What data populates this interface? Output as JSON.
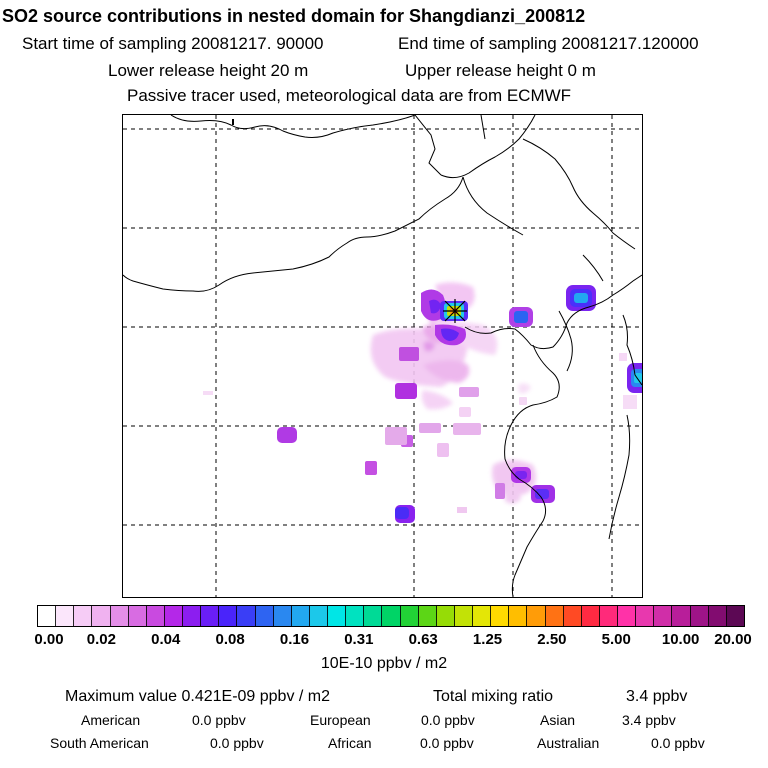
{
  "header": {
    "title": "SO2 source contributions in nested domain for Shangdianzi_200812",
    "start_label": "Start time of sampling 20081217. 90000",
    "end_label": "End time of sampling 20081217.120000",
    "lower_label": "Lower release height   20 m",
    "upper_label": "Upper release height    0 m",
    "tracer_note": "Passive tracer used, meteorological data are from ECMWF"
  },
  "colorbar": {
    "colors": [
      "#ffffff",
      "#fbe6fb",
      "#f6ccf6",
      "#f0b2f0",
      "#e48ee8",
      "#d86ce2",
      "#c94ae0",
      "#b428e8",
      "#8c1ef0",
      "#6a1ef6",
      "#4a24fa",
      "#3a3ef6",
      "#2e64f2",
      "#2a88f0",
      "#22a8f0",
      "#1cc8ea",
      "#00e6e6",
      "#00e2c0",
      "#00da96",
      "#00d466",
      "#22d236",
      "#5cd616",
      "#96dc06",
      "#c2e206",
      "#e4e606",
      "#ffda00",
      "#ffbe00",
      "#ff9c08",
      "#ff7214",
      "#ff4a24",
      "#ff2a42",
      "#ff2a7a",
      "#ff32a8",
      "#e838ae",
      "#d02ea8",
      "#b81e9a",
      "#9e1488",
      "#820c70",
      "#5c0854"
    ],
    "ticks": [
      "0.00",
      "0.02",
      "0.04",
      "0.08",
      "0.16",
      "0.31",
      "0.63",
      "1.25",
      "2.50",
      "5.00",
      "10.00",
      "20.00"
    ],
    "units": "10E-10 ppbv / m2"
  },
  "summary": {
    "max_label": "Maximum value  0.421E-09 ppbv / m2",
    "total_label": "Total mixing ratio",
    "total_value": "3.4 ppbv",
    "regions": [
      {
        "name": "American",
        "value": "0.0 ppbv"
      },
      {
        "name": "European",
        "value": "0.0 ppbv"
      },
      {
        "name": "Asian",
        "value": "3.4 ppbv"
      },
      {
        "name": "South American",
        "value": "0.0 ppbv"
      },
      {
        "name": "African",
        "value": "0.0 ppbv"
      },
      {
        "name": "Australian",
        "value": "0.0 ppbv"
      }
    ]
  }
}
